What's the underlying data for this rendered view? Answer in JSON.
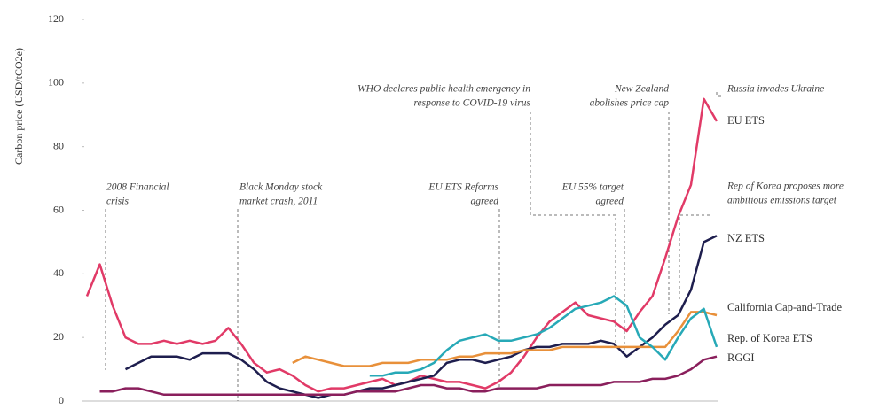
{
  "chart_data": {
    "type": "line",
    "y_label": "Carbon price (USD/tCO2e)",
    "ylim": [
      0,
      120
    ],
    "yticks": [
      0,
      20,
      40,
      60,
      80,
      100,
      120
    ],
    "grid": false,
    "series": [
      {
        "name": "EU ETS",
        "color": "#e13a67",
        "values": [
          33,
          43,
          30,
          20,
          18,
          18,
          19,
          18,
          19,
          18,
          19,
          23,
          18,
          12,
          9,
          10,
          8,
          5,
          3,
          4,
          4,
          5,
          6,
          7,
          5,
          6,
          8,
          7,
          6,
          6,
          5,
          4,
          6,
          9,
          14,
          20,
          25,
          28,
          31,
          27,
          26,
          25,
          22,
          28,
          33,
          45,
          58,
          68,
          95,
          88
        ]
      },
      {
        "name": "NZ ETS",
        "color": "#1e1e4e",
        "values": [
          null,
          null,
          null,
          10,
          12,
          14,
          14,
          14,
          13,
          15,
          15,
          15,
          13,
          10,
          6,
          4,
          3,
          2,
          1,
          2,
          2,
          3,
          4,
          4,
          5,
          6,
          7,
          8,
          12,
          13,
          13,
          12,
          13,
          14,
          16,
          17,
          17,
          18,
          18,
          18,
          19,
          18,
          14,
          17,
          20,
          24,
          27,
          35,
          50,
          52
        ]
      },
      {
        "name": "California Cap-and-Trade",
        "color": "#e8903a",
        "values": [
          null,
          null,
          null,
          null,
          null,
          null,
          null,
          null,
          null,
          null,
          null,
          null,
          null,
          null,
          null,
          null,
          12,
          14,
          13,
          12,
          11,
          11,
          11,
          12,
          12,
          12,
          13,
          13,
          13,
          14,
          14,
          15,
          15,
          15,
          16,
          16,
          16,
          17,
          17,
          17,
          17,
          17,
          17,
          17,
          17,
          17,
          22,
          28,
          28,
          27
        ]
      },
      {
        "name": "Rep. of Korea ETS",
        "color": "#27a9b7",
        "values": [
          null,
          null,
          null,
          null,
          null,
          null,
          null,
          null,
          null,
          null,
          null,
          null,
          null,
          null,
          null,
          null,
          null,
          null,
          null,
          null,
          null,
          null,
          8,
          8,
          9,
          9,
          10,
          12,
          16,
          19,
          20,
          21,
          19,
          19,
          20,
          21,
          23,
          26,
          29,
          30,
          31,
          33,
          30,
          20,
          17,
          13,
          20,
          26,
          29,
          17
        ]
      },
      {
        "name": "RGGI",
        "color": "#8a1f5c",
        "values": [
          null,
          3,
          3,
          4,
          4,
          3,
          2,
          2,
          2,
          2,
          2,
          2,
          2,
          2,
          2,
          2,
          2,
          2,
          2,
          2,
          2,
          3,
          3,
          3,
          3,
          4,
          5,
          5,
          4,
          4,
          3,
          3,
          4,
          4,
          4,
          4,
          5,
          5,
          5,
          5,
          5,
          6,
          6,
          6,
          7,
          7,
          8,
          10,
          13,
          14
        ]
      }
    ],
    "annotations": [
      {
        "lines": [
          "2008 Financial",
          "crisis"
        ]
      },
      {
        "lines": [
          "Black Monday stock",
          "market crash, 2011"
        ]
      },
      {
        "lines": [
          "EU ETS Reforms",
          "agreed"
        ]
      },
      {
        "lines": [
          "WHO declares public health emergency in",
          "response to COVID-19 virus"
        ]
      },
      {
        "lines": [
          "EU 55% target",
          "agreed"
        ]
      },
      {
        "lines": [
          "New Zealand",
          "abolishes price cap"
        ]
      },
      {
        "lines": [
          "Russia invades Ukraine"
        ]
      },
      {
        "lines": [
          "Rep of Korea proposes more",
          "ambitious emissions target"
        ]
      }
    ]
  }
}
